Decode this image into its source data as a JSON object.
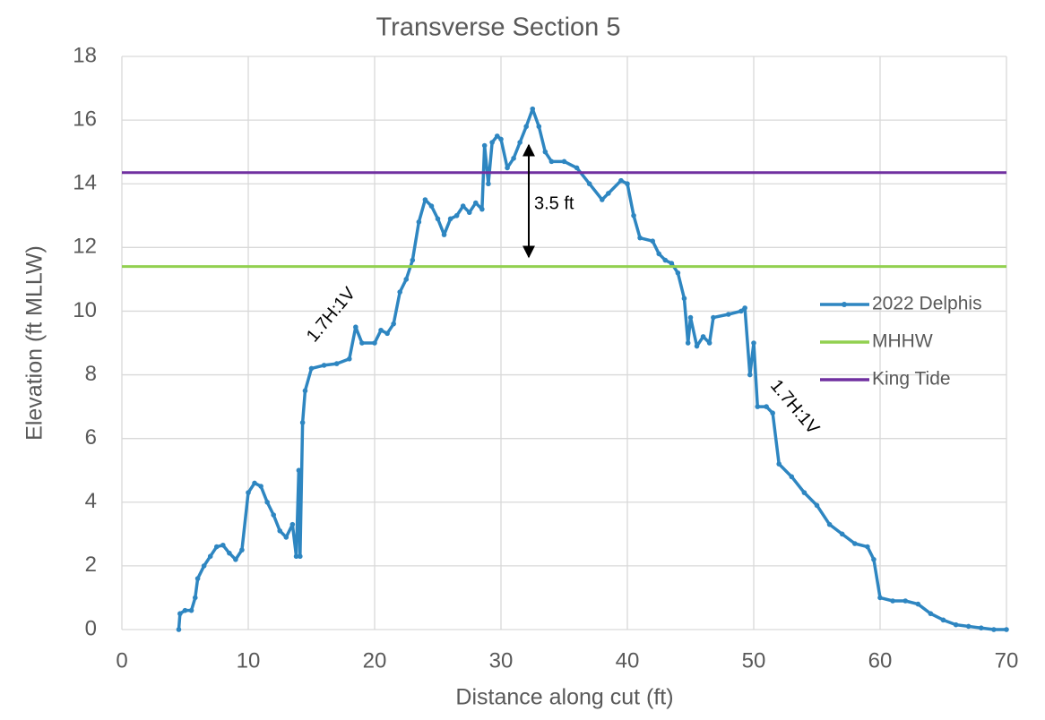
{
  "chart_data": {
    "type": "line",
    "title": "Transverse Section 5",
    "x_label": "Distance along cut (ft)",
    "y_label": "Elevation (ft MLLW)",
    "xlim": [
      0,
      70
    ],
    "xticks": [
      0,
      10,
      20,
      30,
      40,
      50,
      60,
      70
    ],
    "ylim": [
      0,
      18
    ],
    "yticks": [
      0,
      2,
      4,
      6,
      8,
      10,
      12,
      14,
      16,
      18
    ],
    "grid": true,
    "legend": "right",
    "series": [
      {
        "name": "2022 Delphis",
        "color": "#2e86c1",
        "marker": true,
        "x": [
          4.5,
          4.6,
          5,
          5.5,
          5.8,
          6,
          6.5,
          7,
          7.5,
          8,
          8.5,
          9,
          9.5,
          10,
          10.5,
          11,
          11.5,
          12,
          12.5,
          13,
          13.5,
          13.8,
          14,
          14.1,
          14.3,
          14.5,
          15,
          16,
          17,
          18,
          18.5,
          19,
          20,
          20.5,
          21,
          21.5,
          22,
          22.5,
          23,
          23.5,
          24,
          24.5,
          25,
          25.5,
          26,
          26.5,
          27,
          27.5,
          28,
          28.5,
          28.7,
          29,
          29.3,
          29.7,
          30,
          30.5,
          31,
          31.5,
          32,
          32.5,
          33,
          33.5,
          34,
          35,
          36,
          37,
          38,
          38.5,
          39.5,
          40,
          40.5,
          41,
          42,
          42.5,
          43,
          43.5,
          44,
          44.5,
          44.8,
          45,
          45.5,
          46,
          46.5,
          46.8,
          48,
          49,
          49.3,
          49.7,
          50,
          50.3,
          51,
          51.5,
          52,
          53,
          54,
          55,
          56,
          57,
          58,
          59,
          59.5,
          60,
          61,
          62,
          63,
          64,
          65,
          66,
          67,
          68,
          69,
          70
        ],
        "values": [
          0,
          0.5,
          0.6,
          0.6,
          1.0,
          1.6,
          2.0,
          2.3,
          2.6,
          2.65,
          2.4,
          2.2,
          2.5,
          4.3,
          4.6,
          4.5,
          4.0,
          3.6,
          3.1,
          2.9,
          3.3,
          2.3,
          5.0,
          2.3,
          6.5,
          7.5,
          8.2,
          8.3,
          8.35,
          8.5,
          9.5,
          9.0,
          9.0,
          9.4,
          9.3,
          9.6,
          10.6,
          11.0,
          11.6,
          12.8,
          13.5,
          13.3,
          12.9,
          12.4,
          12.9,
          13.0,
          13.3,
          13.1,
          13.4,
          13.2,
          15.2,
          14.0,
          15.3,
          15.5,
          15.4,
          14.5,
          14.8,
          15.3,
          15.8,
          16.35,
          15.8,
          15.0,
          14.7,
          14.7,
          14.5,
          14.0,
          13.5,
          13.7,
          14.1,
          14.0,
          13.0,
          12.3,
          12.2,
          11.8,
          11.6,
          11.5,
          11.2,
          10.4,
          9.0,
          9.8,
          8.9,
          9.2,
          9.0,
          9.8,
          9.9,
          10.0,
          10.1,
          8.0,
          9.0,
          7.0,
          7.0,
          6.8,
          5.2,
          4.8,
          4.3,
          3.9,
          3.3,
          3.0,
          2.7,
          2.6,
          2.2,
          1.0,
          0.9,
          0.9,
          0.8,
          0.5,
          0.3,
          0.15,
          0.1,
          0.05,
          0,
          0
        ]
      },
      {
        "name": "MHHW",
        "color": "#92d050",
        "marker": false,
        "x": [
          0,
          70
        ],
        "values": [
          11.4,
          11.4
        ]
      },
      {
        "name": "King Tide",
        "color": "#7030a0",
        "marker": false,
        "x": [
          0,
          70
        ],
        "values": [
          14.35,
          14.35
        ]
      }
    ],
    "annotations": [
      {
        "text": "1.7H:1V"
      },
      {
        "text": "1.7H:1V"
      },
      {
        "text": "3.5 ft"
      }
    ]
  }
}
